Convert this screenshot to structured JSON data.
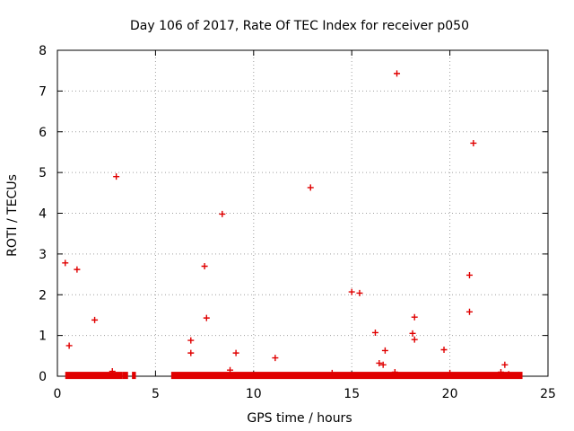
{
  "chart_data": {
    "type": "scatter",
    "title": "Day 106 of 2017, Rate Of TEC Index for receiver p050",
    "xlabel": "GPS time / hours",
    "ylabel": "ROTI / TECUs",
    "xlim": [
      0,
      25
    ],
    "ylim": [
      0,
      8
    ],
    "x_ticks": [
      0,
      5,
      10,
      15,
      20,
      25
    ],
    "y_ticks": [
      0,
      1,
      2,
      3,
      4,
      5,
      6,
      7,
      8
    ],
    "grid": true,
    "marker": "plus",
    "color": "#e00000",
    "baseline_segments": [
      {
        "x_start": 0.4,
        "x_end": 3.3,
        "y": 0.02
      },
      {
        "x_start": 3.3,
        "x_end": 3.6,
        "y": 0.02
      },
      {
        "x_start": 3.8,
        "x_end": 4.0,
        "y": 0.02
      },
      {
        "x_start": 5.8,
        "x_end": 23.7,
        "y": 0.02
      }
    ],
    "series": [
      {
        "name": "p050",
        "points": [
          [
            0.4,
            2.78
          ],
          [
            0.6,
            0.75
          ],
          [
            1.0,
            2.62
          ],
          [
            1.9,
            1.38
          ],
          [
            2.8,
            0.12
          ],
          [
            3.0,
            4.9
          ],
          [
            6.8,
            0.88
          ],
          [
            6.8,
            0.57
          ],
          [
            7.5,
            2.7
          ],
          [
            7.6,
            1.43
          ],
          [
            8.4,
            3.98
          ],
          [
            8.8,
            0.15
          ],
          [
            9.1,
            0.57
          ],
          [
            11.1,
            0.45
          ],
          [
            12.9,
            4.63
          ],
          [
            15.0,
            2.07
          ],
          [
            15.4,
            2.04
          ],
          [
            16.2,
            1.07
          ],
          [
            16.4,
            0.32
          ],
          [
            16.6,
            0.28
          ],
          [
            16.7,
            0.63
          ],
          [
            17.3,
            7.43
          ],
          [
            18.1,
            1.05
          ],
          [
            18.2,
            1.45
          ],
          [
            18.2,
            0.9
          ],
          [
            19.7,
            0.65
          ],
          [
            21.0,
            2.48
          ],
          [
            21.0,
            1.58
          ],
          [
            21.2,
            5.72
          ],
          [
            22.8,
            0.28
          ],
          [
            22.6,
            0.1
          ],
          [
            23.0,
            0.05
          ],
          [
            14.0,
            0.08
          ],
          [
            17.2,
            0.1
          ],
          [
            20.0,
            0.08
          ]
        ]
      }
    ]
  }
}
